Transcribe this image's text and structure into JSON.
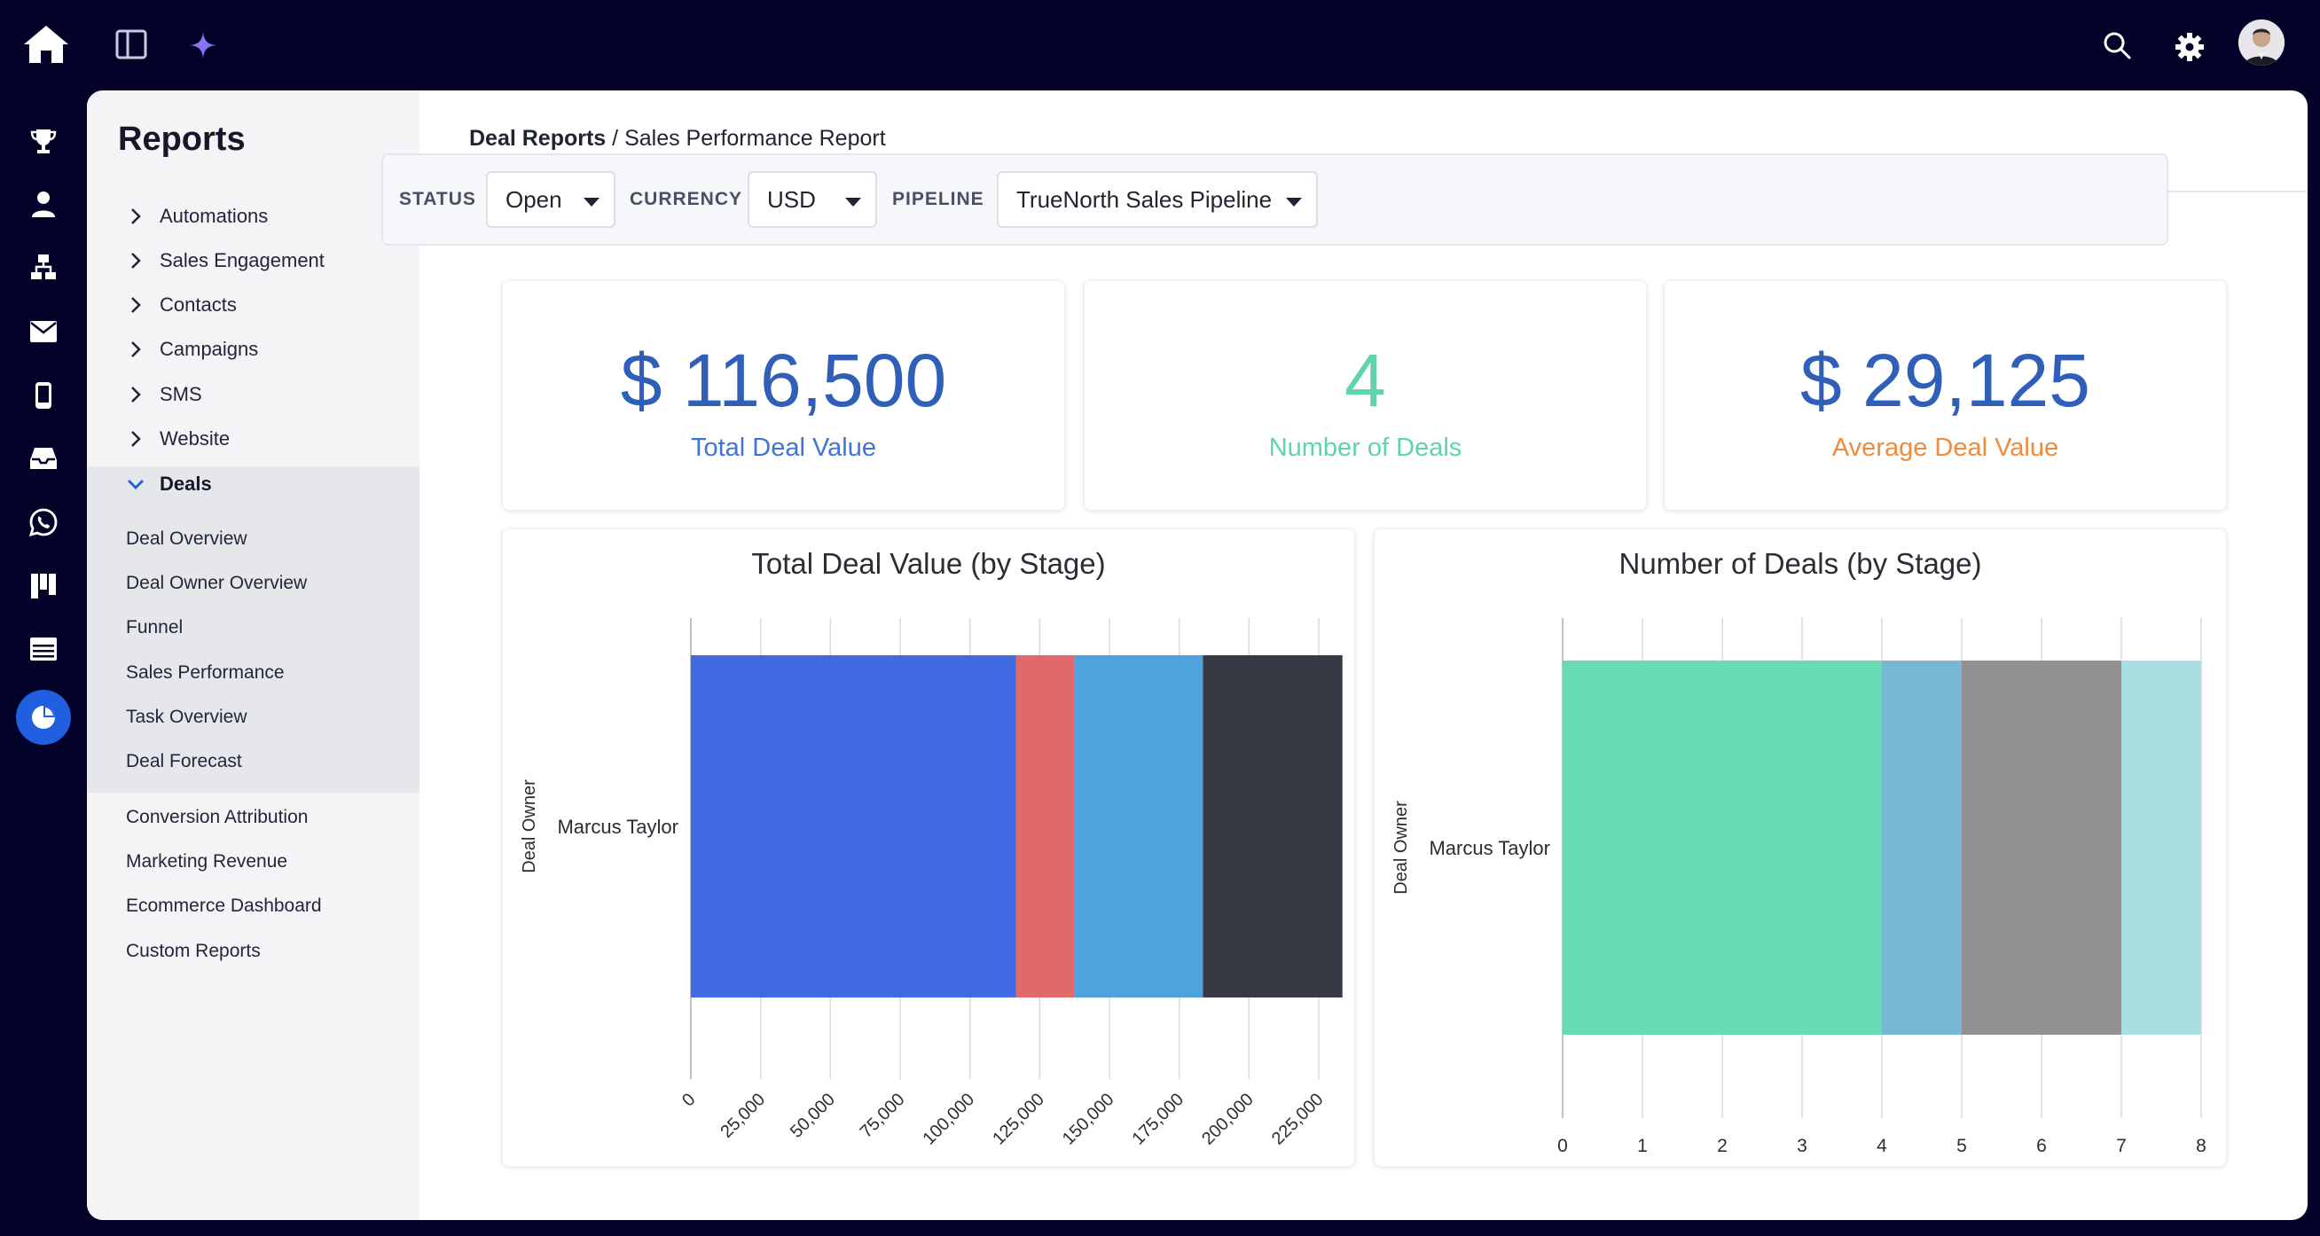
{
  "topbar": {
    "icons": [
      "home-icon",
      "panel-toggle-icon",
      "sparkle-icon",
      "search-icon",
      "gear-icon",
      "avatar"
    ]
  },
  "rail": {
    "icons": [
      "trophy-icon",
      "person-icon",
      "hierarchy-icon",
      "mail-icon",
      "mobile-icon",
      "inbox-icon",
      "whatsapp-icon",
      "kanban-icon",
      "browser-icon",
      "pie-chart-icon"
    ],
    "active": "pie-chart-icon"
  },
  "sidebar": {
    "title": "Reports",
    "items": [
      {
        "label": "Automations"
      },
      {
        "label": "Sales Engagement"
      },
      {
        "label": "Contacts"
      },
      {
        "label": "Campaigns"
      },
      {
        "label": "SMS"
      },
      {
        "label": "Website"
      },
      {
        "label": "Deals"
      }
    ],
    "deals_sub": [
      {
        "label": "Deal Overview"
      },
      {
        "label": "Deal Owner Overview"
      },
      {
        "label": "Funnel"
      },
      {
        "label": "Sales Performance"
      },
      {
        "label": "Task Overview"
      },
      {
        "label": "Deal Forecast"
      }
    ],
    "more": [
      {
        "label": "Conversion Attribution"
      },
      {
        "label": "Marketing Revenue"
      },
      {
        "label": "Ecommerce Dashboard"
      },
      {
        "label": "Custom Reports"
      }
    ]
  },
  "breadcrumb": {
    "parent": "Deal Reports",
    "separator": " / ",
    "current": "Sales Performance Report"
  },
  "filters": {
    "status_label": "STATUS",
    "status_value": "Open",
    "currency_label": "CURRENCY",
    "currency_value": "USD",
    "pipeline_label": "PIPELINE",
    "pipeline_value": "TrueNorth Sales Pipeline"
  },
  "kpis": [
    {
      "value": "$ 116,500",
      "label": "Total Deal Value",
      "value_color": "#2f5fb8",
      "label_color": "#3f74d6"
    },
    {
      "value": "4",
      "label": "Number of Deals",
      "value_color": "#5fd3ae",
      "label_color": "#5fd3ae"
    },
    {
      "value": "$ 29,125",
      "label": "Average Deal Value",
      "value_color": "#2f5fb8",
      "label_color": "#f08a3c"
    }
  ],
  "chart_data": [
    {
      "type": "bar",
      "orientation": "horizontal",
      "stacked": true,
      "title": "Total Deal Value (by Stage)",
      "ylabel": "Deal Owner",
      "categories": [
        "Marcus Taylor"
      ],
      "xlim": [
        0,
        232000
      ],
      "xticks": [
        "0",
        "25,000",
        "50,000",
        "75,000",
        "100,000",
        "125,000",
        "150,000",
        "175,000",
        "200,000",
        "225,000"
      ],
      "series": [
        {
          "values": [
            116500
          ],
          "color": "#4169e1"
        },
        {
          "values": [
            21000
          ],
          "color": "#e0696c"
        },
        {
          "values": [
            46000
          ],
          "color": "#4fa3dc"
        },
        {
          "values": [
            50000
          ],
          "color": "#353a45"
        }
      ]
    },
    {
      "type": "bar",
      "orientation": "horizontal",
      "stacked": true,
      "title": "Number of Deals (by Stage)",
      "ylabel": "Deal Owner",
      "categories": [
        "Marcus Taylor"
      ],
      "xlim": [
        0,
        8
      ],
      "xticks": [
        "0",
        "1",
        "2",
        "3",
        "4",
        "5",
        "6",
        "7",
        "8"
      ],
      "series": [
        {
          "values": [
            4
          ],
          "color": "#68dbb3"
        },
        {
          "values": [
            1
          ],
          "color": "#78b8d4"
        },
        {
          "values": [
            2
          ],
          "color": "#919191"
        },
        {
          "values": [
            1
          ],
          "color": "#a9dfe0"
        }
      ]
    }
  ]
}
